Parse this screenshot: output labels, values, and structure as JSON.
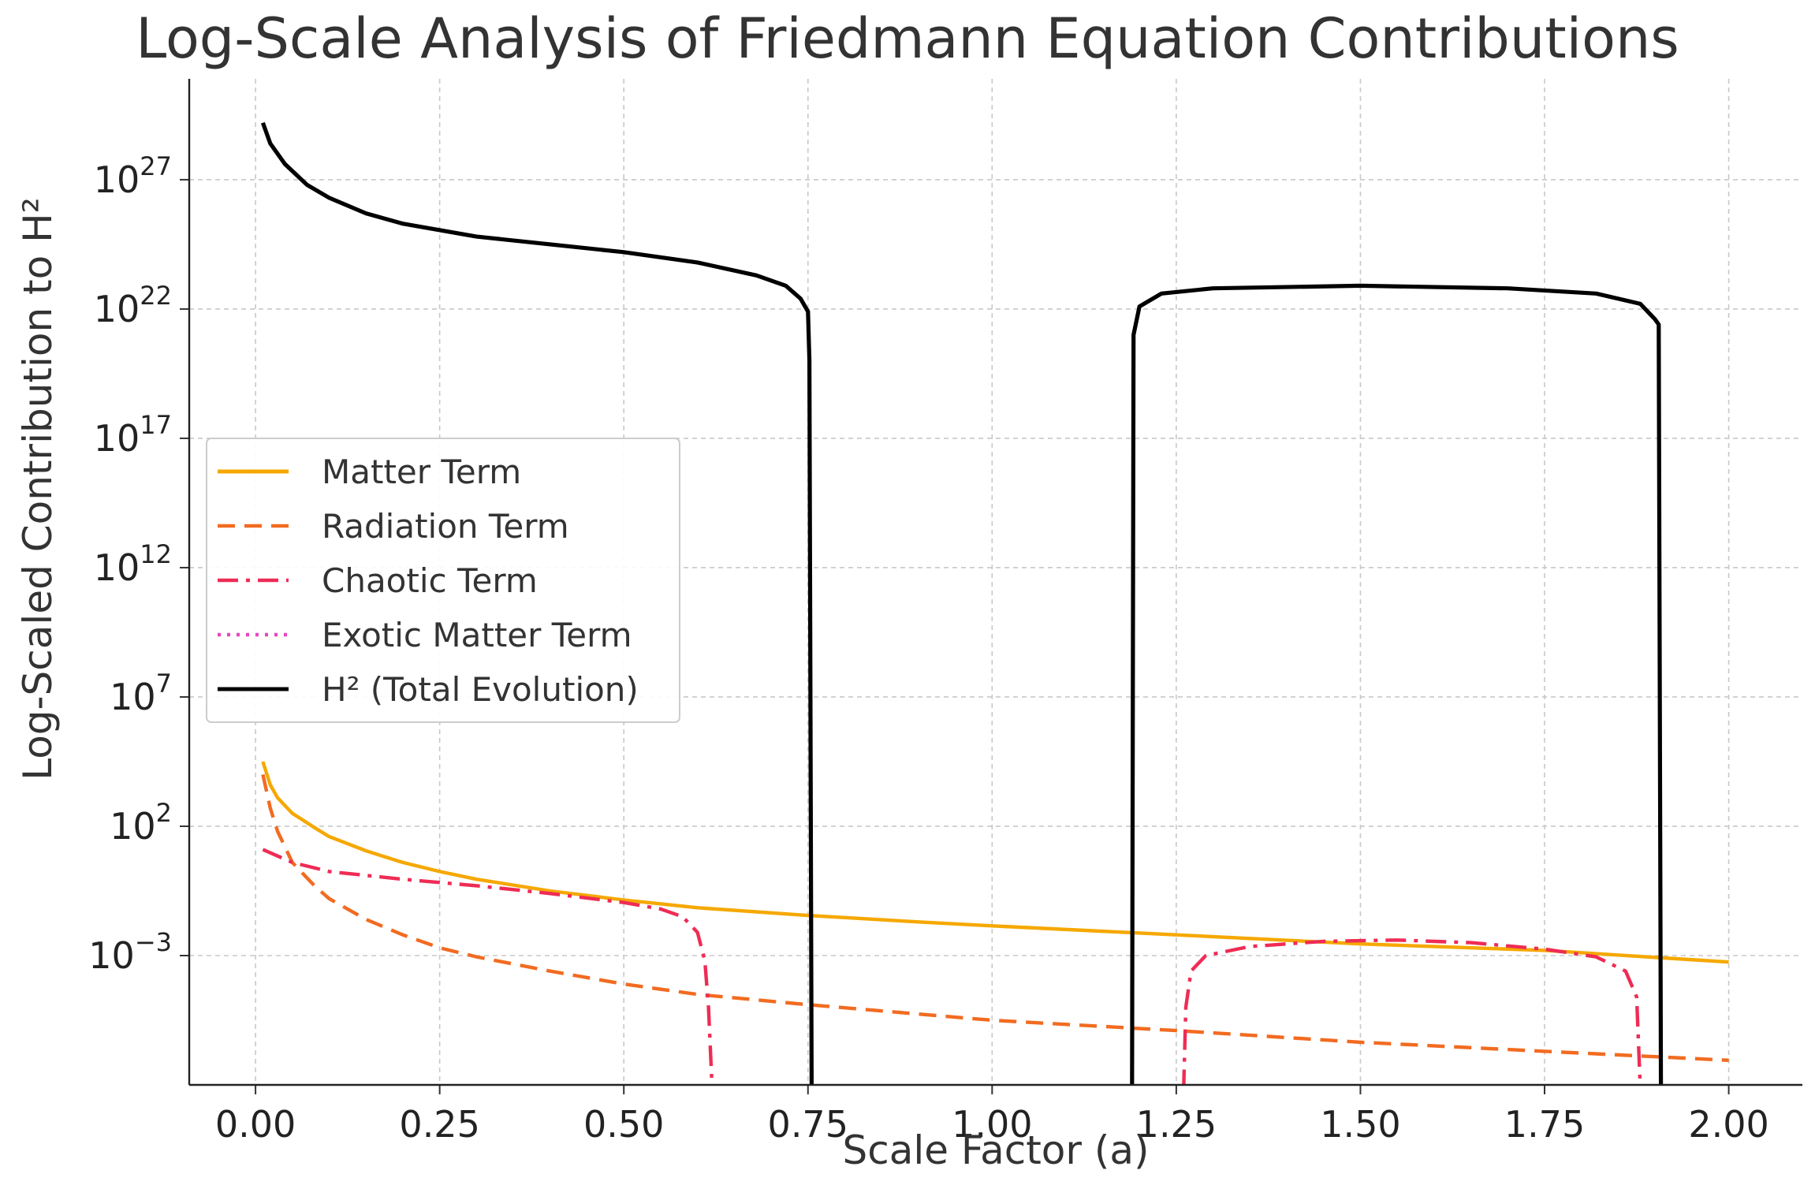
{
  "chart_data": {
    "type": "line",
    "title": "Log-Scale Analysis of Friedmann Equation Contributions",
    "xlabel": "Scale Factor (a)",
    "ylabel": "Log-Scaled Contribution to H²",
    "yscale": "log",
    "xlim": [
      -0.09,
      2.1
    ],
    "ylim_exponent": [
      -8.0,
      30.9
    ],
    "x_ticks": [
      "0.00",
      "0.25",
      "0.50",
      "0.75",
      "1.00",
      "1.25",
      "1.50",
      "1.75",
      "2.00"
    ],
    "x_tick_values": [
      0,
      0.25,
      0.5,
      0.75,
      1.0,
      1.25,
      1.5,
      1.75,
      2.0
    ],
    "y_ticks": [
      {
        "base": "10",
        "exp": "27",
        "value": 27
      },
      {
        "base": "10",
        "exp": "22",
        "value": 22
      },
      {
        "base": "10",
        "exp": "17",
        "value": 17
      },
      {
        "base": "10",
        "exp": "12",
        "value": 12
      },
      {
        "base": "10",
        "exp": "7",
        "value": 7
      },
      {
        "base": "10",
        "exp": "2",
        "value": 2
      },
      {
        "base": "10",
        "exp": "−3",
        "value": -3
      }
    ],
    "grid": true,
    "legend_position": "center-left",
    "series": [
      {
        "name": "Matter Term",
        "color": "#f5a800",
        "style": "solid",
        "points_log10": [
          [
            0.01,
            4.5
          ],
          [
            0.02,
            3.6
          ],
          [
            0.03,
            3.1
          ],
          [
            0.05,
            2.5
          ],
          [
            0.08,
            1.95
          ],
          [
            0.1,
            1.6
          ],
          [
            0.15,
            1.05
          ],
          [
            0.2,
            0.6
          ],
          [
            0.25,
            0.25
          ],
          [
            0.3,
            -0.05
          ],
          [
            0.4,
            -0.5
          ],
          [
            0.5,
            -0.85
          ],
          [
            0.6,
            -1.15
          ],
          [
            0.75,
            -1.45
          ],
          [
            0.9,
            -1.7
          ],
          [
            1.0,
            -1.85
          ],
          [
            1.25,
            -2.2
          ],
          [
            1.5,
            -2.55
          ],
          [
            1.75,
            -2.8
          ],
          [
            2.0,
            -3.25
          ]
        ]
      },
      {
        "name": "Radiation Term",
        "color": "#f26b21",
        "style": "dashed",
        "points_log10": [
          [
            0.01,
            4.0
          ],
          [
            0.02,
            2.7
          ],
          [
            0.03,
            1.8
          ],
          [
            0.05,
            0.6
          ],
          [
            0.08,
            -0.3
          ],
          [
            0.1,
            -0.8
          ],
          [
            0.15,
            -1.6
          ],
          [
            0.2,
            -2.2
          ],
          [
            0.25,
            -2.7
          ],
          [
            0.3,
            -3.05
          ],
          [
            0.4,
            -3.6
          ],
          [
            0.5,
            -4.1
          ],
          [
            0.6,
            -4.5
          ],
          [
            0.75,
            -4.9
          ],
          [
            1.0,
            -5.5
          ],
          [
            1.25,
            -5.9
          ],
          [
            1.5,
            -6.35
          ],
          [
            1.75,
            -6.7
          ],
          [
            2.0,
            -7.05
          ]
        ]
      },
      {
        "name": "Chaotic Term",
        "color": "#ee2c55",
        "style": "dashdot",
        "segments_log10": [
          [
            [
              0.01,
              1.1
            ],
            [
              0.05,
              0.6
            ],
            [
              0.1,
              0.25
            ],
            [
              0.2,
              -0.05
            ],
            [
              0.3,
              -0.3
            ],
            [
              0.4,
              -0.6
            ],
            [
              0.5,
              -0.95
            ],
            [
              0.55,
              -1.2
            ],
            [
              0.58,
              -1.5
            ],
            [
              0.6,
              -2.1
            ],
            [
              0.61,
              -3.2
            ],
            [
              0.615,
              -5
            ],
            [
              0.62,
              -8.2
            ]
          ],
          [
            [
              1.26,
              -8.2
            ],
            [
              1.263,
              -5
            ],
            [
              1.27,
              -3.6
            ],
            [
              1.29,
              -3.0
            ],
            [
              1.35,
              -2.65
            ],
            [
              1.45,
              -2.45
            ],
            [
              1.55,
              -2.4
            ],
            [
              1.65,
              -2.5
            ],
            [
              1.75,
              -2.75
            ],
            [
              1.82,
              -3.05
            ],
            [
              1.86,
              -3.6
            ],
            [
              1.875,
              -4.6
            ],
            [
              1.88,
              -8.2
            ]
          ]
        ]
      },
      {
        "name": "Exotic Matter Term",
        "color": "#e645c2",
        "style": "dotted",
        "points_log10": []
      },
      {
        "name": "H² (Total Evolution)",
        "color": "#000000",
        "style": "solid",
        "segments_log10": [
          [
            [
              0.01,
              29.2
            ],
            [
              0.02,
              28.4
            ],
            [
              0.04,
              27.6
            ],
            [
              0.07,
              26.8
            ],
            [
              0.1,
              26.3
            ],
            [
              0.15,
              25.7
            ],
            [
              0.2,
              25.3
            ],
            [
              0.3,
              24.8
            ],
            [
              0.4,
              24.5
            ],
            [
              0.5,
              24.2
            ],
            [
              0.6,
              23.8
            ],
            [
              0.68,
              23.3
            ],
            [
              0.72,
              22.9
            ],
            [
              0.74,
              22.4
            ],
            [
              0.75,
              21.9
            ],
            [
              0.752,
              20
            ],
            [
              0.755,
              -8.2
            ]
          ],
          [
            [
              1.19,
              -8.2
            ],
            [
              1.192,
              21.0
            ],
            [
              1.2,
              22.1
            ],
            [
              1.23,
              22.6
            ],
            [
              1.3,
              22.8
            ],
            [
              1.5,
              22.9
            ],
            [
              1.7,
              22.8
            ],
            [
              1.82,
              22.6
            ],
            [
              1.88,
              22.2
            ],
            [
              1.9,
              21.6
            ],
            [
              1.905,
              21.4
            ],
            [
              1.908,
              -8.2
            ]
          ]
        ]
      }
    ]
  }
}
